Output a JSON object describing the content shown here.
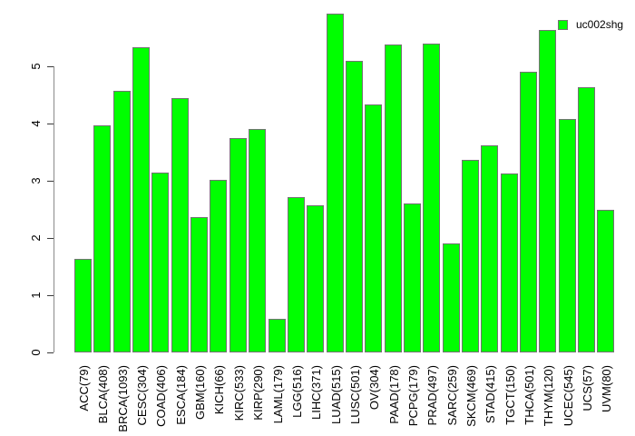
{
  "legend": {
    "label": "uc002shg",
    "swatch_color": "#00ff00"
  },
  "chart_data": {
    "type": "bar",
    "title": "",
    "xlabel": "",
    "ylabel": "",
    "series_name": "uc002shg",
    "categories": [
      "ACC(79)",
      "BLCA(408)",
      "BRCA(1093)",
      "CESC(304)",
      "COAD(406)",
      "ESCA(184)",
      "GBM(160)",
      "KICH(66)",
      "KIRC(533)",
      "KIRP(290)",
      "LAML(179)",
      "LGG(516)",
      "LIHC(371)",
      "LUAD(515)",
      "LUSC(501)",
      "OV(304)",
      "PAAD(178)",
      "PCPG(179)",
      "PRAD(497)",
      "SARC(259)",
      "SKCM(469)",
      "STAD(415)",
      "TGCT(150)",
      "THCA(501)",
      "THYM(120)",
      "UCEC(545)",
      "UCS(57)",
      "UVM(80)"
    ],
    "values": [
      1.63,
      3.97,
      4.57,
      5.33,
      3.15,
      4.44,
      2.37,
      3.01,
      3.75,
      3.91,
      0.58,
      2.72,
      2.57,
      5.92,
      5.1,
      4.33,
      5.38,
      2.6,
      5.39,
      1.9,
      3.37,
      3.62,
      3.12,
      4.9,
      5.63,
      4.08,
      4.63,
      2.49
    ],
    "yticks": [
      0,
      1,
      2,
      3,
      4,
      5
    ],
    "ylim": [
      0,
      6
    ],
    "bar_color": "#00ff00",
    "bar_border_color": "#737373",
    "grid": false,
    "legend_position": "top-right",
    "legend_entries": [
      "uc002shg"
    ]
  }
}
